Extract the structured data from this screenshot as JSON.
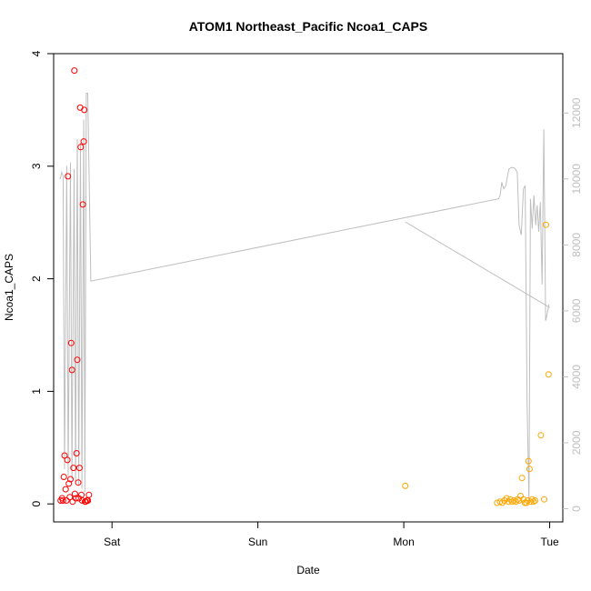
{
  "chart_data": {
    "type": "scatter",
    "title": "ATOM1 Northeast_Pacific Ncoa1_CAPS",
    "xlabel": "Date",
    "ylabel": "Ncoa1_CAPS",
    "x_ticks": [
      {
        "label": "Sat",
        "x": 1.0
      },
      {
        "label": "Sun",
        "x": 2.0
      },
      {
        "label": "Mon",
        "x": 3.0
      },
      {
        "label": "Tue",
        "x": 4.0
      }
    ],
    "y_ticks": [
      "0",
      "1",
      "2",
      "3",
      "4"
    ],
    "y_right_ticks": [
      "0",
      "2000",
      "4000",
      "6000",
      "8000",
      "10000",
      "12000"
    ],
    "xlim": [
      0.6,
      4.09
    ],
    "ylim": [
      -0.16,
      4.0
    ],
    "y_right_lim": [
      -400,
      13800
    ],
    "grid": false,
    "colors": {
      "series1": "#ff0000",
      "series2": "#ffa500",
      "line": "#bebebe",
      "axis": "#000000"
    },
    "series": [
      {
        "values": [
          [
            0.648,
            0.03
          ],
          [
            0.658,
            0.05
          ],
          [
            0.664,
            0.03
          ],
          [
            0.67,
            0.24
          ],
          [
            0.675,
            0.43
          ],
          [
            0.682,
            0.13
          ],
          [
            0.688,
            0.03
          ],
          [
            0.694,
            0.39
          ],
          [
            0.698,
            2.91
          ],
          [
            0.704,
            0.18
          ],
          [
            0.71,
            0.06
          ],
          [
            0.715,
            0.22
          ],
          [
            0.72,
            1.43
          ],
          [
            0.726,
            1.19
          ],
          [
            0.73,
            0.02
          ],
          [
            0.736,
            0.32
          ],
          [
            0.742,
            3.85
          ],
          [
            0.746,
            0.09
          ],
          [
            0.752,
            0.05
          ],
          [
            0.757,
            0.45
          ],
          [
            0.762,
            1.28
          ],
          [
            0.768,
            0.19
          ],
          [
            0.772,
            0.05
          ],
          [
            0.777,
            0.32
          ],
          [
            0.782,
            3.52
          ],
          [
            0.786,
            3.17
          ],
          [
            0.79,
            0.08
          ],
          [
            0.796,
            0.03
          ],
          [
            0.8,
            2.66
          ],
          [
            0.806,
            3.22
          ],
          [
            0.81,
            3.5
          ],
          [
            0.815,
            0.02
          ],
          [
            0.82,
            0.02
          ],
          [
            0.828,
            0.03
          ],
          [
            0.835,
            0.03
          ],
          [
            0.842,
            0.08
          ]
        ]
      },
      {
        "values": [
          [
            3.01,
            0.16
          ],
          [
            3.64,
            0.01
          ],
          [
            3.66,
            0.02
          ],
          [
            3.675,
            0.01
          ],
          [
            3.69,
            0.03
          ],
          [
            3.705,
            0.05
          ],
          [
            3.718,
            0.02
          ],
          [
            3.73,
            0.04
          ],
          [
            3.742,
            0.02
          ],
          [
            3.755,
            0.03
          ],
          [
            3.768,
            0.02
          ],
          [
            3.78,
            0.04
          ],
          [
            3.79,
            0.03
          ],
          [
            3.8,
            0.07
          ],
          [
            3.81,
            0.23
          ],
          [
            3.82,
            0.04
          ],
          [
            3.83,
            0.01
          ],
          [
            3.84,
            0.01
          ],
          [
            3.848,
            0.03
          ],
          [
            3.855,
            0.38
          ],
          [
            3.862,
            0.31
          ],
          [
            3.87,
            0.02
          ],
          [
            3.88,
            0.04
          ],
          [
            3.89,
            0.02
          ],
          [
            3.9,
            0.03
          ],
          [
            3.94,
            0.61
          ],
          [
            3.962,
            0.04
          ],
          [
            3.975,
            2.48
          ],
          [
            3.992,
            1.15
          ]
        ]
      }
    ],
    "line_series": {
      "axis": "right",
      "points": [
        [
          0.645,
          10000
        ],
        [
          0.655,
          10200
        ],
        [
          0.665,
          10100
        ],
        [
          0.675,
          1200
        ],
        [
          0.69,
          10400
        ],
        [
          0.7,
          1000
        ],
        [
          0.715,
          10500
        ],
        [
          0.725,
          900
        ],
        [
          0.74,
          10300
        ],
        [
          0.75,
          800
        ],
        [
          0.762,
          11200
        ],
        [
          0.772,
          700
        ],
        [
          0.784,
          11100
        ],
        [
          0.794,
          600
        ],
        [
          0.806,
          11800
        ],
        [
          0.814,
          500
        ],
        [
          0.824,
          12600
        ],
        [
          0.834,
          12600
        ],
        [
          0.855,
          6900
        ],
        [
          3.65,
          9400
        ],
        [
          3.66,
          9500
        ],
        [
          3.672,
          9900
        ],
        [
          3.685,
          9700
        ],
        [
          3.7,
          9800
        ],
        [
          3.72,
          10300
        ],
        [
          3.742,
          10350
        ],
        [
          3.762,
          10320
        ],
        [
          3.778,
          10200
        ],
        [
          3.79,
          8600
        ],
        [
          3.805,
          8300
        ],
        [
          3.82,
          9700
        ],
        [
          3.832,
          9800
        ],
        [
          3.845,
          3200
        ],
        [
          3.858,
          200
        ],
        [
          3.868,
          9400
        ],
        [
          3.88,
          8500
        ],
        [
          3.892,
          9500
        ],
        [
          3.904,
          8600
        ],
        [
          3.914,
          9200
        ],
        [
          3.925,
          8400
        ],
        [
          3.936,
          9300
        ],
        [
          3.948,
          6800
        ],
        [
          3.96,
          11500
        ],
        [
          3.972,
          5700
        ],
        [
          3.982,
          5900
        ],
        [
          3.995,
          6200
        ]
      ],
      "tail": [
        [
          3.01,
          8700
        ],
        [
          4.0,
          6100
        ]
      ]
    }
  }
}
